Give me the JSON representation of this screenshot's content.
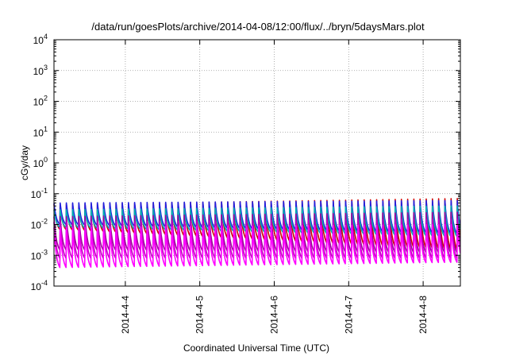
{
  "chart_data": {
    "type": "line",
    "title": "/data/run/goesPlots/archive/2014-04-08/12:00/flux/../bryn/5daysMars.plot",
    "xlabel": "Coordinated Universal Time (UTC)",
    "ylabel": "cGy/day",
    "yscale": "log",
    "ylim": [
      0.0001,
      10000
    ],
    "xlim": [
      "2014-04-03 01:00",
      "2014-04-08 12:00"
    ],
    "grid": true,
    "legend": "none",
    "y_ticks": [
      {
        "base": "10",
        "exp": "-4"
      },
      {
        "base": "10",
        "exp": "-3"
      },
      {
        "base": "10",
        "exp": "-2"
      },
      {
        "base": "10",
        "exp": "-1"
      },
      {
        "base": "10",
        "exp": "0"
      },
      {
        "base": "10",
        "exp": "1"
      },
      {
        "base": "10",
        "exp": "2"
      },
      {
        "base": "10",
        "exp": "3"
      },
      {
        "base": "10",
        "exp": "4"
      }
    ],
    "x_ticks": [
      {
        "label": "2014-4-4",
        "value": "2014-04-04 00:00"
      },
      {
        "label": "2014-4-5",
        "value": "2014-04-05 00:00"
      },
      {
        "label": "2014-4-6",
        "value": "2014-04-06 00:00"
      },
      {
        "label": "2014-4-7",
        "value": "2014-04-07 00:00"
      },
      {
        "label": "2014-4-8",
        "value": "2014-04-08 00:00"
      }
    ],
    "cycle_hours": 2,
    "series": [
      {
        "color": "#d00000",
        "peak": [
          0.045,
          0.07
        ],
        "trough": [
          0.007,
          0.0015
        ]
      },
      {
        "color": "#2020e0",
        "peak": [
          0.05,
          0.06
        ],
        "trough": [
          0.01,
          0.005
        ]
      },
      {
        "color": "#00b0b0",
        "peak": [
          0.03,
          0.04
        ],
        "trough": [
          0.008,
          0.004
        ]
      },
      {
        "color": "#a000a0",
        "peak": [
          0.018,
          0.025
        ],
        "trough": [
          0.0015,
          0.0012
        ]
      },
      {
        "color": "#c000c0",
        "peak": [
          0.012,
          0.015
        ],
        "trough": [
          0.0008,
          0.0008
        ]
      },
      {
        "color": "#ff00ff",
        "peak": [
          0.008,
          0.01
        ],
        "trough": [
          0.0004,
          0.0006
        ]
      }
    ]
  }
}
